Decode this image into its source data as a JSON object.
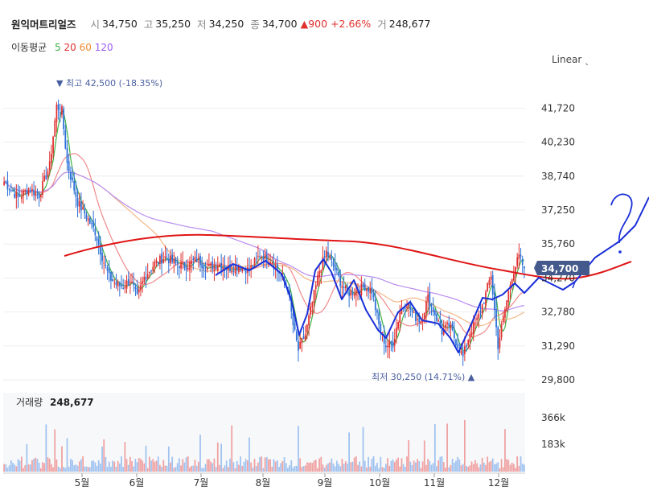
{
  "header": {
    "stock_name": "원익머트리얼즈",
    "open_label": "시",
    "open": "34,750",
    "high_label": "고",
    "high": "35,250",
    "low_label": "저",
    "low": "34,250",
    "close_label": "종",
    "close": "34,700",
    "change": "▲900",
    "change_pct": "+2.66%",
    "volume_label": "거",
    "volume": "248,677"
  },
  "ma_legend": {
    "title": "이동평균",
    "periods": [
      "5",
      "20",
      "60",
      "120"
    ],
    "colors": [
      "#3cb043",
      "#e0302f",
      "#f08a2e",
      "#9b59f0"
    ]
  },
  "scale_button": "Linear ˎ",
  "colors": {
    "up": "#e0302f",
    "down": "#2a6fd6",
    "ma5": "#3cb043",
    "ma20": "#f08a8a",
    "ma60": "#f2b888",
    "ma120": "#b98cf0",
    "vol_up": "#f0a0a0",
    "vol_down": "#9fc2f0",
    "price_tag": "#445a8c",
    "drawing_blue": "#1a2fd8",
    "drawing_red": "#e01515"
  },
  "chart_data": {
    "type": "candlestick",
    "y_ticks": [
      "41,720",
      "40,230",
      "38,740",
      "37,250",
      "35,760",
      "34,270",
      "32,780",
      "31,290",
      "29,800"
    ],
    "ylim": [
      29800,
      42500
    ],
    "x_ticks": [
      "5월",
      "6월",
      "7월",
      "8월",
      "9월",
      "10월",
      "11월",
      "12월"
    ],
    "current_price_label": "34,700",
    "current_price": 34700,
    "high_annotation": "▼ 최고 42,500 (-18.35%)",
    "low_annotation": "최저 30,250 (14.71%) ▲",
    "volume_label": "거래량",
    "volume_value": "248,677",
    "volume_ticks": [
      "366k",
      "183k"
    ],
    "volume_ylim": [
      0,
      366000
    ],
    "anchors": [
      [
        0,
        38500
      ],
      [
        8,
        37800
      ],
      [
        14,
        38200
      ],
      [
        20,
        37900
      ],
      [
        26,
        39200
      ],
      [
        30,
        41800
      ],
      [
        33,
        41600
      ],
      [
        36,
        39300
      ],
      [
        42,
        37600
      ],
      [
        46,
        37100
      ],
      [
        52,
        36300
      ],
      [
        56,
        35200
      ],
      [
        60,
        34300
      ],
      [
        64,
        34000
      ],
      [
        68,
        33900
      ],
      [
        72,
        34200
      ],
      [
        76,
        33400
      ],
      [
        80,
        34300
      ],
      [
        86,
        34900
      ],
      [
        92,
        35200
      ],
      [
        98,
        34900
      ],
      [
        104,
        34800
      ],
      [
        110,
        35100
      ],
      [
        116,
        34700
      ],
      [
        122,
        34900
      ],
      [
        128,
        34700
      ],
      [
        134,
        34800
      ],
      [
        140,
        34600
      ],
      [
        146,
        35300
      ],
      [
        152,
        35100
      ],
      [
        158,
        34400
      ],
      [
        162,
        33800
      ],
      [
        165,
        32200
      ],
      [
        168,
        31100
      ],
      [
        172,
        31800
      ],
      [
        176,
        33200
      ],
      [
        180,
        34600
      ],
      [
        184,
        35400
      ],
      [
        188,
        34800
      ],
      [
        192,
        34100
      ],
      [
        196,
        33600
      ],
      [
        200,
        33700
      ],
      [
        206,
        33900
      ],
      [
        210,
        33700
      ],
      [
        214,
        32200
      ],
      [
        218,
        31300
      ],
      [
        222,
        31400
      ],
      [
        226,
        32800
      ],
      [
        230,
        33200
      ],
      [
        234,
        32600
      ],
      [
        238,
        32400
      ],
      [
        242,
        33400
      ],
      [
        246,
        32700
      ],
      [
        250,
        31900
      ],
      [
        254,
        32200
      ],
      [
        258,
        31500
      ],
      [
        262,
        30800
      ],
      [
        266,
        31900
      ],
      [
        270,
        32400
      ],
      [
        274,
        33300
      ],
      [
        278,
        34400
      ],
      [
        282,
        31300
      ],
      [
        286,
        32900
      ],
      [
        290,
        34400
      ],
      [
        294,
        35200
      ],
      [
        297,
        34700
      ]
    ]
  }
}
